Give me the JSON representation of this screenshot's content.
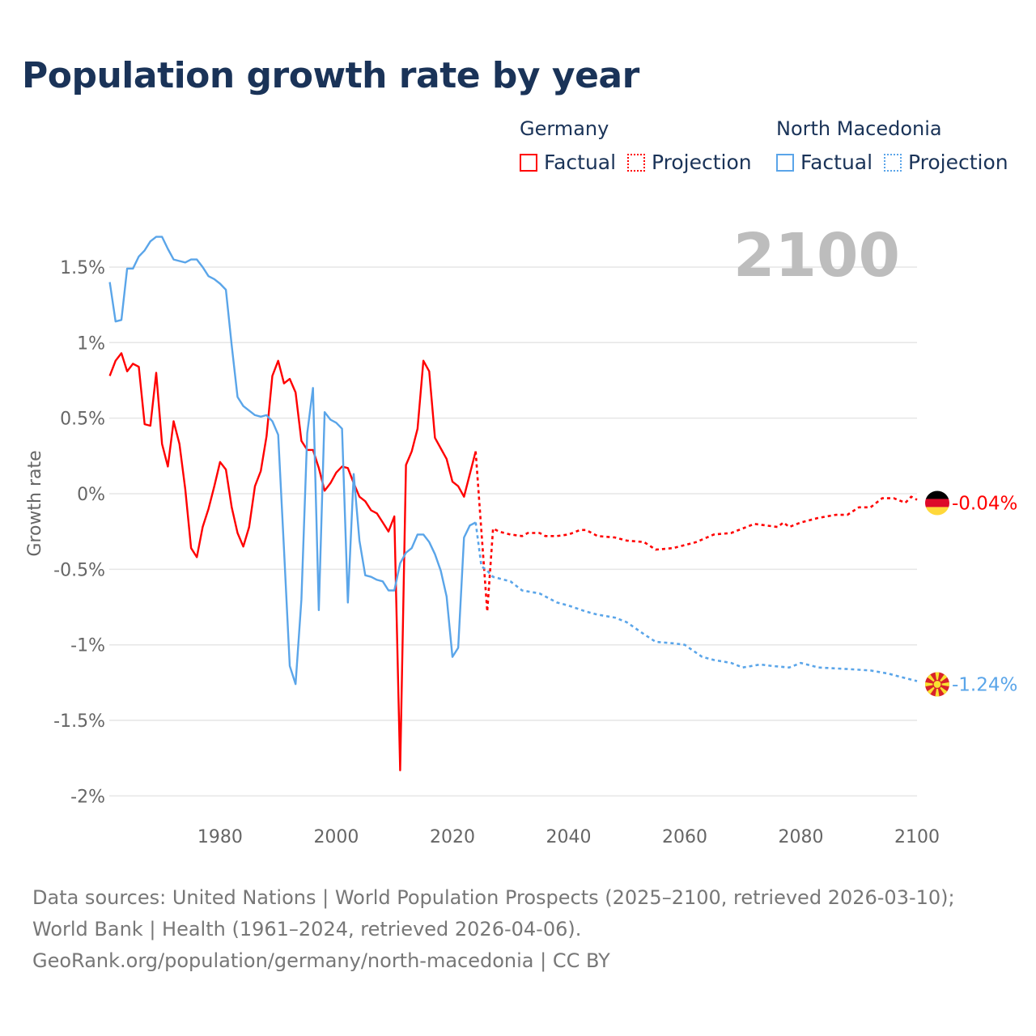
{
  "title": "Population growth rate by year",
  "legend": {
    "germany": {
      "name": "Germany",
      "factual": "Factual",
      "projection": "Projection",
      "color": "#ff0000"
    },
    "macedonia": {
      "name": "North Macedonia",
      "factual": "Factual",
      "projection": "Projection",
      "color": "#5aa5e9"
    }
  },
  "footer": {
    "line1": "Data sources: United Nations | World Population Prospects (2025–2100, retrieved 2026-03-10); World Bank | Health (1961–2024, retrieved 2026-04-06).",
    "line2": "GeoRank.org/population/germany/north-macedonia | CC BY"
  },
  "chart_data": {
    "type": "line",
    "title": "Population growth rate by year",
    "xlabel": "",
    "ylabel": "Growth rate",
    "year_watermark": "2100",
    "xlim": [
      1961,
      2100
    ],
    "ylim": [
      -2.15,
      1.8
    ],
    "x_ticks": [
      1980,
      2000,
      2020,
      2040,
      2060,
      2080,
      2100
    ],
    "x_tick_labels": [
      "1980",
      "2000",
      "2020",
      "2040",
      "2060",
      "2080",
      "2100"
    ],
    "y_ticks": [
      1.5,
      1,
      0.5,
      0,
      -0.5,
      -1,
      -1.5,
      -2
    ],
    "y_tick_labels": [
      "1.5%",
      "1%",
      "0.5%",
      "0%",
      "-0.5%",
      "-1%",
      "-1.5%",
      "-2%"
    ],
    "grid": true,
    "legend_position": "top-right",
    "series": [
      {
        "name": "Germany",
        "kind": "Factual",
        "color": "#ff0000",
        "style": "solid",
        "x_start": 1961,
        "values": [
          0.78,
          0.88,
          0.93,
          0.81,
          0.86,
          0.84,
          0.46,
          0.45,
          0.8,
          0.33,
          0.18,
          0.48,
          0.33,
          0.03,
          -0.36,
          -0.42,
          -0.22,
          -0.1,
          0.05,
          0.21,
          0.16,
          -0.09,
          -0.26,
          -0.35,
          -0.22,
          0.05,
          0.15,
          0.38,
          0.78,
          0.88,
          0.73,
          0.76,
          0.67,
          0.35,
          0.29,
          0.29,
          0.17,
          0.02,
          0.07,
          0.14,
          0.18,
          0.17,
          0.07,
          -0.02,
          -0.05,
          -0.11,
          -0.13,
          -0.19,
          -0.25,
          -0.15,
          -1.83,
          0.19,
          0.28,
          0.43,
          0.88,
          0.81,
          0.37,
          0.3,
          0.23,
          0.08,
          0.05,
          -0.02,
          0.13,
          0.28
        ]
      },
      {
        "name": "Germany",
        "kind": "Projection",
        "color": "#ff0000",
        "style": "dotted",
        "x": [
          2025,
          2026,
          2027,
          2028,
          2030,
          2032,
          2033,
          2035,
          2036,
          2038,
          2040,
          2042,
          2043,
          2045,
          2048,
          2050,
          2053,
          2055,
          2058,
          2060,
          2062,
          2065,
          2068,
          2070,
          2072,
          2074,
          2076,
          2077,
          2078,
          2080,
          2083,
          2086,
          2088,
          2090,
          2092,
          2094,
          2096,
          2098,
          2099,
          2100
        ],
        "values": [
          -0.25,
          -0.78,
          -0.23,
          -0.25,
          -0.27,
          -0.28,
          -0.26,
          -0.26,
          -0.28,
          -0.28,
          -0.27,
          -0.24,
          -0.24,
          -0.28,
          -0.29,
          -0.31,
          -0.32,
          -0.37,
          -0.36,
          -0.34,
          -0.32,
          -0.27,
          -0.26,
          -0.23,
          -0.2,
          -0.21,
          -0.22,
          -0.19,
          -0.22,
          -0.19,
          -0.16,
          -0.14,
          -0.14,
          -0.09,
          -0.09,
          -0.03,
          -0.03,
          -0.06,
          -0.02,
          -0.04
        ]
      },
      {
        "name": "North Macedonia",
        "kind": "Factual",
        "color": "#5aa5e9",
        "style": "solid",
        "x_start": 1961,
        "values": [
          1.4,
          1.14,
          1.15,
          1.49,
          1.49,
          1.57,
          1.61,
          1.67,
          1.7,
          1.7,
          1.62,
          1.55,
          1.54,
          1.53,
          1.55,
          1.55,
          1.5,
          1.44,
          1.42,
          1.39,
          1.35,
          0.98,
          0.64,
          0.58,
          0.55,
          0.52,
          0.51,
          0.52,
          0.48,
          0.39,
          -0.37,
          -1.14,
          -1.26,
          -0.7,
          0.4,
          0.7,
          -0.77,
          0.54,
          0.49,
          0.47,
          0.43,
          -0.72,
          0.13,
          -0.31,
          -0.54,
          -0.55,
          -0.57,
          -0.58,
          -0.64,
          -0.64,
          -0.46,
          -0.39,
          -0.36,
          -0.27,
          -0.27,
          -0.32,
          -0.4,
          -0.51,
          -0.68,
          -1.08,
          -1.02,
          -0.29,
          -0.21,
          -0.19
        ]
      },
      {
        "name": "North Macedonia",
        "kind": "Projection",
        "color": "#5aa5e9",
        "style": "dotted",
        "x": [
          2025,
          2026,
          2027,
          2030,
          2032,
          2035,
          2038,
          2040,
          2043,
          2045,
          2048,
          2050,
          2053,
          2055,
          2058,
          2060,
          2063,
          2065,
          2068,
          2070,
          2073,
          2075,
          2078,
          2080,
          2083,
          2088,
          2092,
          2095,
          2098,
          2100
        ],
        "values": [
          -0.48,
          -0.51,
          -0.55,
          -0.58,
          -0.64,
          -0.66,
          -0.72,
          -0.74,
          -0.78,
          -0.8,
          -0.82,
          -0.85,
          -0.93,
          -0.98,
          -0.99,
          -1.0,
          -1.08,
          -1.1,
          -1.12,
          -1.15,
          -1.13,
          -1.14,
          -1.15,
          -1.12,
          -1.15,
          -1.16,
          -1.17,
          -1.19,
          -1.22,
          -1.24
        ]
      }
    ],
    "end_labels": [
      {
        "country": "Germany",
        "flag": "germany-flag",
        "value": -0.04,
        "label": "-0.04%",
        "color": "#ff0000"
      },
      {
        "country": "North Macedonia",
        "flag": "north-macedonia-flag",
        "value": -1.24,
        "label": "-1.24%",
        "color": "#5aa5e9"
      }
    ]
  }
}
